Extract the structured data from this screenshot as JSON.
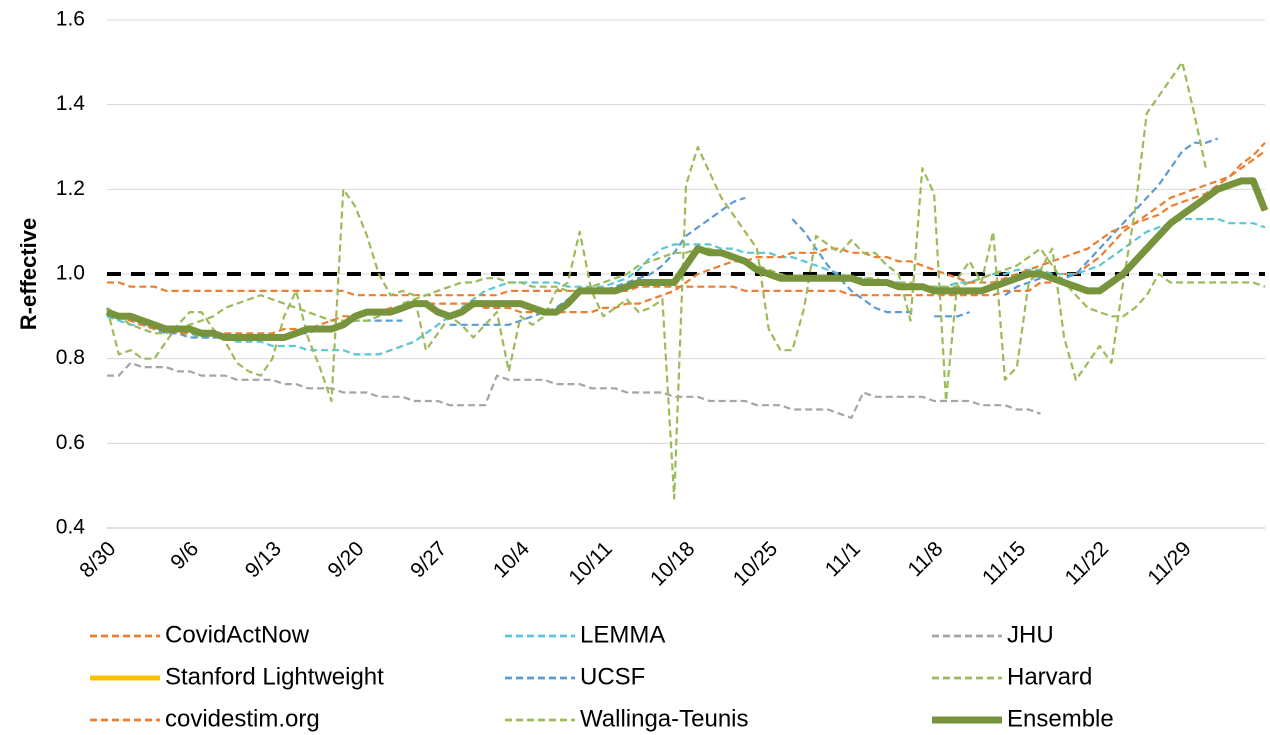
{
  "chart_data": {
    "type": "line",
    "y_label": "R-effective",
    "categories": [
      "8/30",
      null,
      null,
      null,
      null,
      null,
      null,
      "9/6",
      null,
      null,
      null,
      null,
      null,
      null,
      "9/13",
      null,
      null,
      null,
      null,
      null,
      null,
      "9/20",
      null,
      null,
      null,
      null,
      null,
      null,
      "9/27",
      null,
      null,
      null,
      null,
      null,
      null,
      "10/4",
      null,
      null,
      null,
      null,
      null,
      null,
      "10/11",
      null,
      null,
      null,
      null,
      null,
      null,
      "10/18",
      null,
      null,
      null,
      null,
      null,
      null,
      "10/25",
      null,
      null,
      null,
      null,
      null,
      null,
      "11/1",
      null,
      null,
      null,
      null,
      null,
      null,
      "11/8",
      null,
      null,
      null,
      null,
      null,
      null,
      "11/15",
      null,
      null,
      null,
      null,
      null,
      null,
      "11/22",
      null,
      null,
      null,
      null,
      null,
      null,
      "11/29",
      null,
      null,
      null,
      null,
      null,
      null,
      null
    ],
    "ylim": [
      0.4,
      1.6
    ],
    "yticks": [
      0.4,
      0.6,
      0.8,
      {
        "value": 1,
        "label": "1.0"
      },
      1.2,
      1.4,
      1.6
    ],
    "grid": true,
    "legend": "bottom",
    "reference_lines": [
      {
        "value": 1,
        "color": "#000000"
      }
    ],
    "series": [
      {
        "name": "CovidActNow",
        "color": "#ed7d31",
        "style": "dashed",
        "values": [
          0.98,
          0.98,
          0.97,
          0.97,
          0.97,
          0.96,
          0.96,
          0.96,
          0.96,
          0.96,
          0.96,
          0.96,
          0.96,
          0.96,
          0.96,
          0.96,
          0.96,
          0.96,
          0.96,
          0.96,
          0.96,
          0.95,
          0.95,
          0.95,
          0.95,
          0.95,
          0.95,
          0.95,
          0.95,
          0.95,
          0.95,
          0.95,
          0.95,
          0.95,
          0.96,
          0.96,
          0.96,
          0.96,
          0.96,
          0.96,
          0.96,
          0.96,
          0.96,
          0.96,
          0.96,
          0.97,
          0.97,
          0.97,
          0.97,
          0.97,
          0.97,
          0.97,
          0.97,
          0.97,
          0.96,
          0.96,
          0.96,
          0.96,
          0.96,
          0.96,
          0.96,
          0.96,
          0.96,
          0.95,
          0.95,
          0.95,
          0.95,
          0.95,
          0.95,
          0.95,
          0.95,
          0.95,
          0.95,
          0.95,
          0.95,
          0.95,
          0.96,
          0.96,
          0.96,
          0.98,
          0.98,
          1.0,
          1.0,
          1.02,
          1.04,
          1.07,
          1.1,
          1.12,
          1.14,
          1.16,
          1.18,
          1.19,
          1.2,
          1.21,
          1.22,
          1.23,
          1.25,
          1.27,
          1.29
        ]
      },
      {
        "name": "LEMMA",
        "color": "#5bc6d6",
        "style": "dashed",
        "values": [
          0.9,
          0.89,
          0.88,
          0.88,
          0.87,
          0.87,
          0.86,
          0.86,
          0.85,
          0.85,
          0.85,
          0.84,
          0.84,
          0.84,
          0.83,
          0.83,
          0.83,
          0.82,
          0.82,
          0.82,
          0.82,
          0.81,
          0.81,
          0.81,
          0.82,
          0.83,
          0.84,
          0.86,
          0.88,
          0.9,
          0.92,
          0.94,
          0.96,
          0.97,
          0.98,
          0.98,
          0.98,
          0.98,
          0.98,
          0.97,
          0.97,
          0.97,
          0.97,
          0.98,
          0.99,
          1.01,
          1.04,
          1.06,
          1.07,
          1.07,
          1.07,
          1.07,
          1.06,
          1.06,
          1.05,
          1.05,
          1.05,
          1.04,
          1.04,
          1.03,
          1.02,
          1.01,
          1.0,
          0.99,
          0.99,
          0.98,
          0.98,
          0.98,
          0.97,
          0.97,
          0.97,
          0.97,
          0.98,
          0.98,
          0.99,
          1.0,
          1.0,
          1.01,
          1.01,
          1.01,
          1.0,
          1.0,
          1.0,
          1.01,
          1.02,
          1.04,
          1.06,
          1.08,
          1.1,
          1.11,
          1.12,
          1.13,
          1.13,
          1.13,
          1.13,
          1.12,
          1.12,
          1.12,
          1.11
        ]
      },
      {
        "name": "JHU",
        "color": "#a5a5a5",
        "style": "dashed",
        "values": [
          0.76,
          0.76,
          0.79,
          0.78,
          0.78,
          0.78,
          0.77,
          0.77,
          0.76,
          0.76,
          0.76,
          0.75,
          0.75,
          0.75,
          0.75,
          0.74,
          0.74,
          0.73,
          0.73,
          0.73,
          0.72,
          0.72,
          0.72,
          0.71,
          0.71,
          0.71,
          0.7,
          0.7,
          0.7,
          0.69,
          0.69,
          0.69,
          0.69,
          0.76,
          0.75,
          0.75,
          0.75,
          0.75,
          0.74,
          0.74,
          0.74,
          0.73,
          0.73,
          0.73,
          0.72,
          0.72,
          0.72,
          0.72,
          0.71,
          0.71,
          0.71,
          0.7,
          0.7,
          0.7,
          0.7,
          0.69,
          0.69,
          0.69,
          0.68,
          0.68,
          0.68,
          0.68,
          0.67,
          0.66,
          0.72,
          0.71,
          0.71,
          0.71,
          0.71,
          0.71,
          0.7,
          0.7,
          0.7,
          0.7,
          0.69,
          0.69,
          0.69,
          0.68,
          0.68,
          0.67,
          null,
          null,
          null,
          null,
          null,
          null,
          null,
          null,
          null,
          null,
          null,
          null,
          null,
          null,
          null,
          null,
          null,
          null,
          null
        ]
      },
      {
        "name": "Stanford Lightweight",
        "color": "#ffc000",
        "style": "solid",
        "values": [
          null,
          null,
          null,
          null,
          null,
          null,
          null,
          null,
          null,
          null,
          null,
          null,
          null,
          null,
          null,
          null,
          null,
          null,
          null,
          null,
          null,
          null,
          null,
          null,
          null,
          null,
          null,
          null,
          null,
          null,
          null,
          null,
          null,
          null,
          null,
          null,
          null,
          null,
          null,
          null,
          null,
          null,
          null,
          null,
          null,
          null,
          null,
          null,
          null,
          null,
          null,
          null,
          null,
          null,
          null,
          null,
          null,
          null,
          null,
          null,
          null,
          null,
          null,
          null,
          null,
          null,
          null,
          null,
          null,
          null,
          null,
          null,
          null,
          null,
          null,
          null,
          null,
          null,
          null,
          null,
          null,
          null,
          null,
          null,
          null,
          null,
          null,
          null,
          null,
          null,
          null,
          null,
          null,
          null,
          null,
          null,
          null,
          null,
          null
        ]
      },
      {
        "name": "UCSF",
        "color": "#5b9bd5",
        "style": "dashed",
        "values": [
          0.91,
          0.9,
          0.89,
          0.88,
          0.87,
          0.86,
          0.86,
          0.85,
          0.85,
          0.85,
          0.85,
          0.85,
          0.85,
          0.85,
          0.85,
          0.85,
          0.86,
          0.86,
          0.87,
          0.87,
          0.88,
          0.89,
          0.89,
          0.89,
          0.89,
          0.89,
          null,
          null,
          null,
          0.88,
          0.88,
          0.88,
          0.88,
          0.88,
          0.88,
          0.89,
          0.9,
          0.91,
          0.92,
          0.94,
          0.96,
          0.96,
          0.96,
          0.97,
          0.98,
          0.99,
          1.0,
          1.02,
          1.05,
          1.09,
          1.11,
          1.13,
          1.15,
          1.17,
          1.18,
          null,
          null,
          null,
          1.13,
          1.1,
          1.06,
          1.02,
          0.99,
          0.96,
          0.94,
          0.92,
          0.91,
          0.91,
          0.91,
          null,
          0.9,
          0.9,
          0.9,
          0.91,
          null,
          null,
          0.95,
          0.97,
          0.98,
          0.99,
          0.99,
          0.99,
          1.0,
          1.03,
          1.06,
          1.09,
          1.12,
          1.15,
          1.18,
          1.21,
          1.25,
          1.29,
          1.31,
          1.31,
          1.32,
          null,
          null,
          null,
          null
        ]
      },
      {
        "name": "Harvard",
        "color": "#9bbb59",
        "style": "dashed",
        "values": [
          0.92,
          0.9,
          0.88,
          0.87,
          0.86,
          0.86,
          0.87,
          0.88,
          0.89,
          0.9,
          0.92,
          0.93,
          0.94,
          0.95,
          0.94,
          0.93,
          0.92,
          0.91,
          0.9,
          0.89,
          0.89,
          0.89,
          0.89,
          0.9,
          0.91,
          0.93,
          0.94,
          0.95,
          0.96,
          0.97,
          0.98,
          0.98,
          0.99,
          0.99,
          0.98,
          0.98,
          0.97,
          0.97,
          0.97,
          0.96,
          0.96,
          0.97,
          0.98,
          0.99,
          1.0,
          1.02,
          1.03,
          1.04,
          1.05,
          1.05,
          1.06,
          1.06,
          1.05,
          1.04,
          1.03,
          1.02,
          1.01,
          1.0,
          0.99,
          0.99,
          0.99,
          0.99,
          0.99,
          0.99,
          0.99,
          0.99,
          0.98,
          0.98,
          0.98,
          0.97,
          0.97,
          0.97,
          0.97,
          0.98,
          0.99,
          1.0,
          1.01,
          1.02,
          1.04,
          1.06,
          1.02,
          0.98,
          0.95,
          0.92,
          0.91,
          0.9,
          0.9,
          0.92,
          0.95,
          1.0,
          0.98,
          0.98,
          0.98,
          0.98,
          0.98,
          0.98,
          0.98,
          0.98,
          0.97
        ]
      },
      {
        "name": "covidestim.org",
        "color": "#ed7d31",
        "style": "dashed",
        "values": [
          0.91,
          0.9,
          0.89,
          0.88,
          0.87,
          0.87,
          0.86,
          0.86,
          0.86,
          0.86,
          0.86,
          0.86,
          0.86,
          0.86,
          0.86,
          0.87,
          0.87,
          0.87,
          0.88,
          0.89,
          0.9,
          0.9,
          0.91,
          0.91,
          0.92,
          0.92,
          0.93,
          0.93,
          0.93,
          0.93,
          0.93,
          0.93,
          0.92,
          0.92,
          0.92,
          0.91,
          0.91,
          0.91,
          0.91,
          0.91,
          0.91,
          0.91,
          0.92,
          0.92,
          0.93,
          0.93,
          0.94,
          0.95,
          0.96,
          0.98,
          1.0,
          1.01,
          1.02,
          1.03,
          1.03,
          1.04,
          1.04,
          1.04,
          1.05,
          1.05,
          1.05,
          1.06,
          1.06,
          1.05,
          1.05,
          1.04,
          1.04,
          1.03,
          1.03,
          1.02,
          1.01,
          1.0,
          0.99,
          0.98,
          0.98,
          0.98,
          0.99,
          1.0,
          1.01,
          1.02,
          1.03,
          1.04,
          1.05,
          1.06,
          1.08,
          1.1,
          1.11,
          1.12,
          1.13,
          1.14,
          1.16,
          1.17,
          1.18,
          1.19,
          1.21,
          1.23,
          1.26,
          1.28,
          1.31
        ]
      },
      {
        "name": "Wallinga-Teunis",
        "color": "#9bbb59",
        "style": "dashed",
        "values": [
          0.92,
          0.81,
          0.82,
          0.8,
          0.8,
          0.84,
          0.88,
          0.91,
          0.91,
          0.87,
          0.84,
          0.79,
          0.77,
          0.76,
          0.8,
          0.9,
          0.96,
          0.85,
          0.78,
          0.7,
          1.2,
          1.16,
          1.09,
          1.0,
          0.95,
          0.96,
          0.95,
          0.82,
          0.86,
          0.9,
          0.88,
          0.85,
          0.88,
          0.91,
          0.77,
          0.9,
          0.88,
          0.9,
          0.96,
          0.98,
          1.1,
          0.96,
          0.9,
          0.92,
          0.94,
          0.91,
          0.92,
          0.94,
          0.47,
          1.21,
          1.3,
          1.24,
          1.18,
          1.14,
          1.1,
          1.06,
          0.87,
          0.82,
          0.82,
          0.92,
          1.09,
          1.07,
          1.05,
          1.08,
          1.05,
          1.05,
          1.02,
          1.0,
          0.89,
          1.25,
          1.19,
          0.7,
          0.99,
          1.03,
          0.98,
          1.1,
          0.75,
          0.78,
          0.98,
          1.01,
          1.06,
          0.85,
          0.75,
          0.79,
          0.83,
          0.79,
          0.98,
          1.15,
          1.38,
          1.42,
          1.46,
          1.5,
          1.38,
          1.25,
          null,
          null,
          null,
          null,
          null
        ]
      },
      {
        "name": "Ensemble",
        "color": "#77933c",
        "style": "bold",
        "values": [
          0.91,
          0.9,
          0.9,
          0.89,
          0.88,
          0.87,
          0.87,
          0.87,
          0.86,
          0.86,
          0.85,
          0.85,
          0.85,
          0.85,
          0.85,
          0.85,
          0.86,
          0.87,
          0.87,
          0.87,
          0.88,
          0.9,
          0.91,
          0.91,
          0.91,
          0.92,
          0.93,
          0.93,
          0.91,
          0.9,
          0.91,
          0.93,
          0.93,
          0.93,
          0.93,
          0.93,
          0.92,
          0.91,
          0.91,
          0.93,
          0.96,
          0.96,
          0.96,
          0.96,
          0.97,
          0.98,
          0.98,
          0.98,
          0.98,
          1.02,
          1.06,
          1.05,
          1.05,
          1.04,
          1.03,
          1.01,
          1.0,
          0.99,
          0.99,
          0.99,
          0.99,
          0.99,
          0.99,
          0.99,
          0.98,
          0.98,
          0.98,
          0.97,
          0.97,
          0.97,
          0.96,
          0.96,
          0.96,
          0.96,
          0.96,
          0.97,
          0.98,
          0.99,
          1.0,
          1.0,
          0.99,
          0.98,
          0.97,
          0.96,
          0.96,
          0.98,
          1.0,
          1.03,
          1.06,
          1.09,
          1.12,
          1.14,
          1.16,
          1.18,
          1.2,
          1.21,
          1.22,
          1.22,
          1.15
        ]
      }
    ]
  }
}
